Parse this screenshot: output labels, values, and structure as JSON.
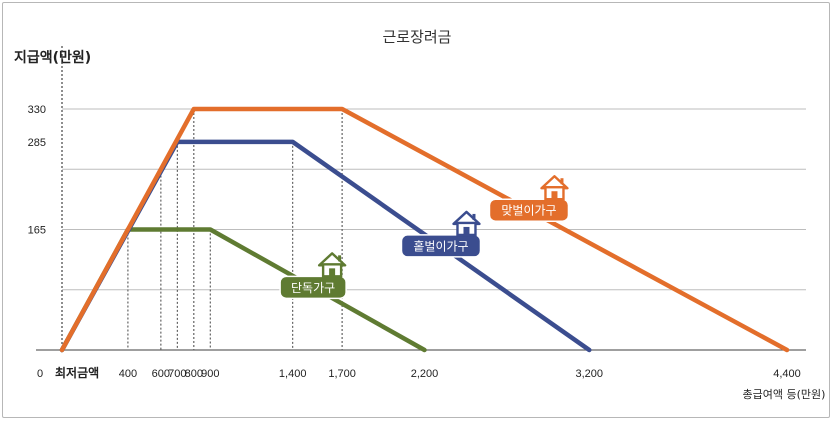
{
  "chart_data": {
    "type": "line",
    "title": "근로장려금",
    "ylabel": "지급액(만원)",
    "xlabel": "총급여액 등(만원)",
    "origin_label": "0",
    "min_label": "최저금액",
    "xlim": [
      0,
      4400
    ],
    "ylim": [
      0,
      330
    ],
    "x_ticks": [
      {
        "value": 400,
        "label": "400"
      },
      {
        "value": 600,
        "label": "600"
      },
      {
        "value": 700,
        "label": "700"
      },
      {
        "value": 800,
        "label": "800"
      },
      {
        "value": 900,
        "label": "900"
      },
      {
        "value": 1400,
        "label": "1,400"
      },
      {
        "value": 1700,
        "label": "1,700"
      },
      {
        "value": 2200,
        "label": "2,200"
      },
      {
        "value": 3200,
        "label": "3,200"
      },
      {
        "value": 4400,
        "label": "4,400"
      }
    ],
    "y_ticks": [
      {
        "value": 330,
        "label": "330"
      },
      {
        "value": 285,
        "label": "285"
      },
      {
        "value": 165,
        "label": "165"
      }
    ],
    "series": [
      {
        "name": "맞벌이가구",
        "color": "#e36e2b",
        "icon": "house-icon",
        "points": [
          [
            0,
            0
          ],
          [
            800,
            330
          ],
          [
            1700,
            330
          ],
          [
            4400,
            0
          ]
        ]
      },
      {
        "name": "홑벌이가구",
        "color": "#3b4d8f",
        "icon": "house-icon",
        "points": [
          [
            0,
            0
          ],
          [
            700,
            285
          ],
          [
            1400,
            285
          ],
          [
            3200,
            0
          ]
        ]
      },
      {
        "name": "단독가구",
        "color": "#5f7b32",
        "icon": "house-icon",
        "points": [
          [
            0,
            0
          ],
          [
            400,
            165
          ],
          [
            900,
            165
          ],
          [
            2200,
            0
          ]
        ]
      }
    ]
  }
}
